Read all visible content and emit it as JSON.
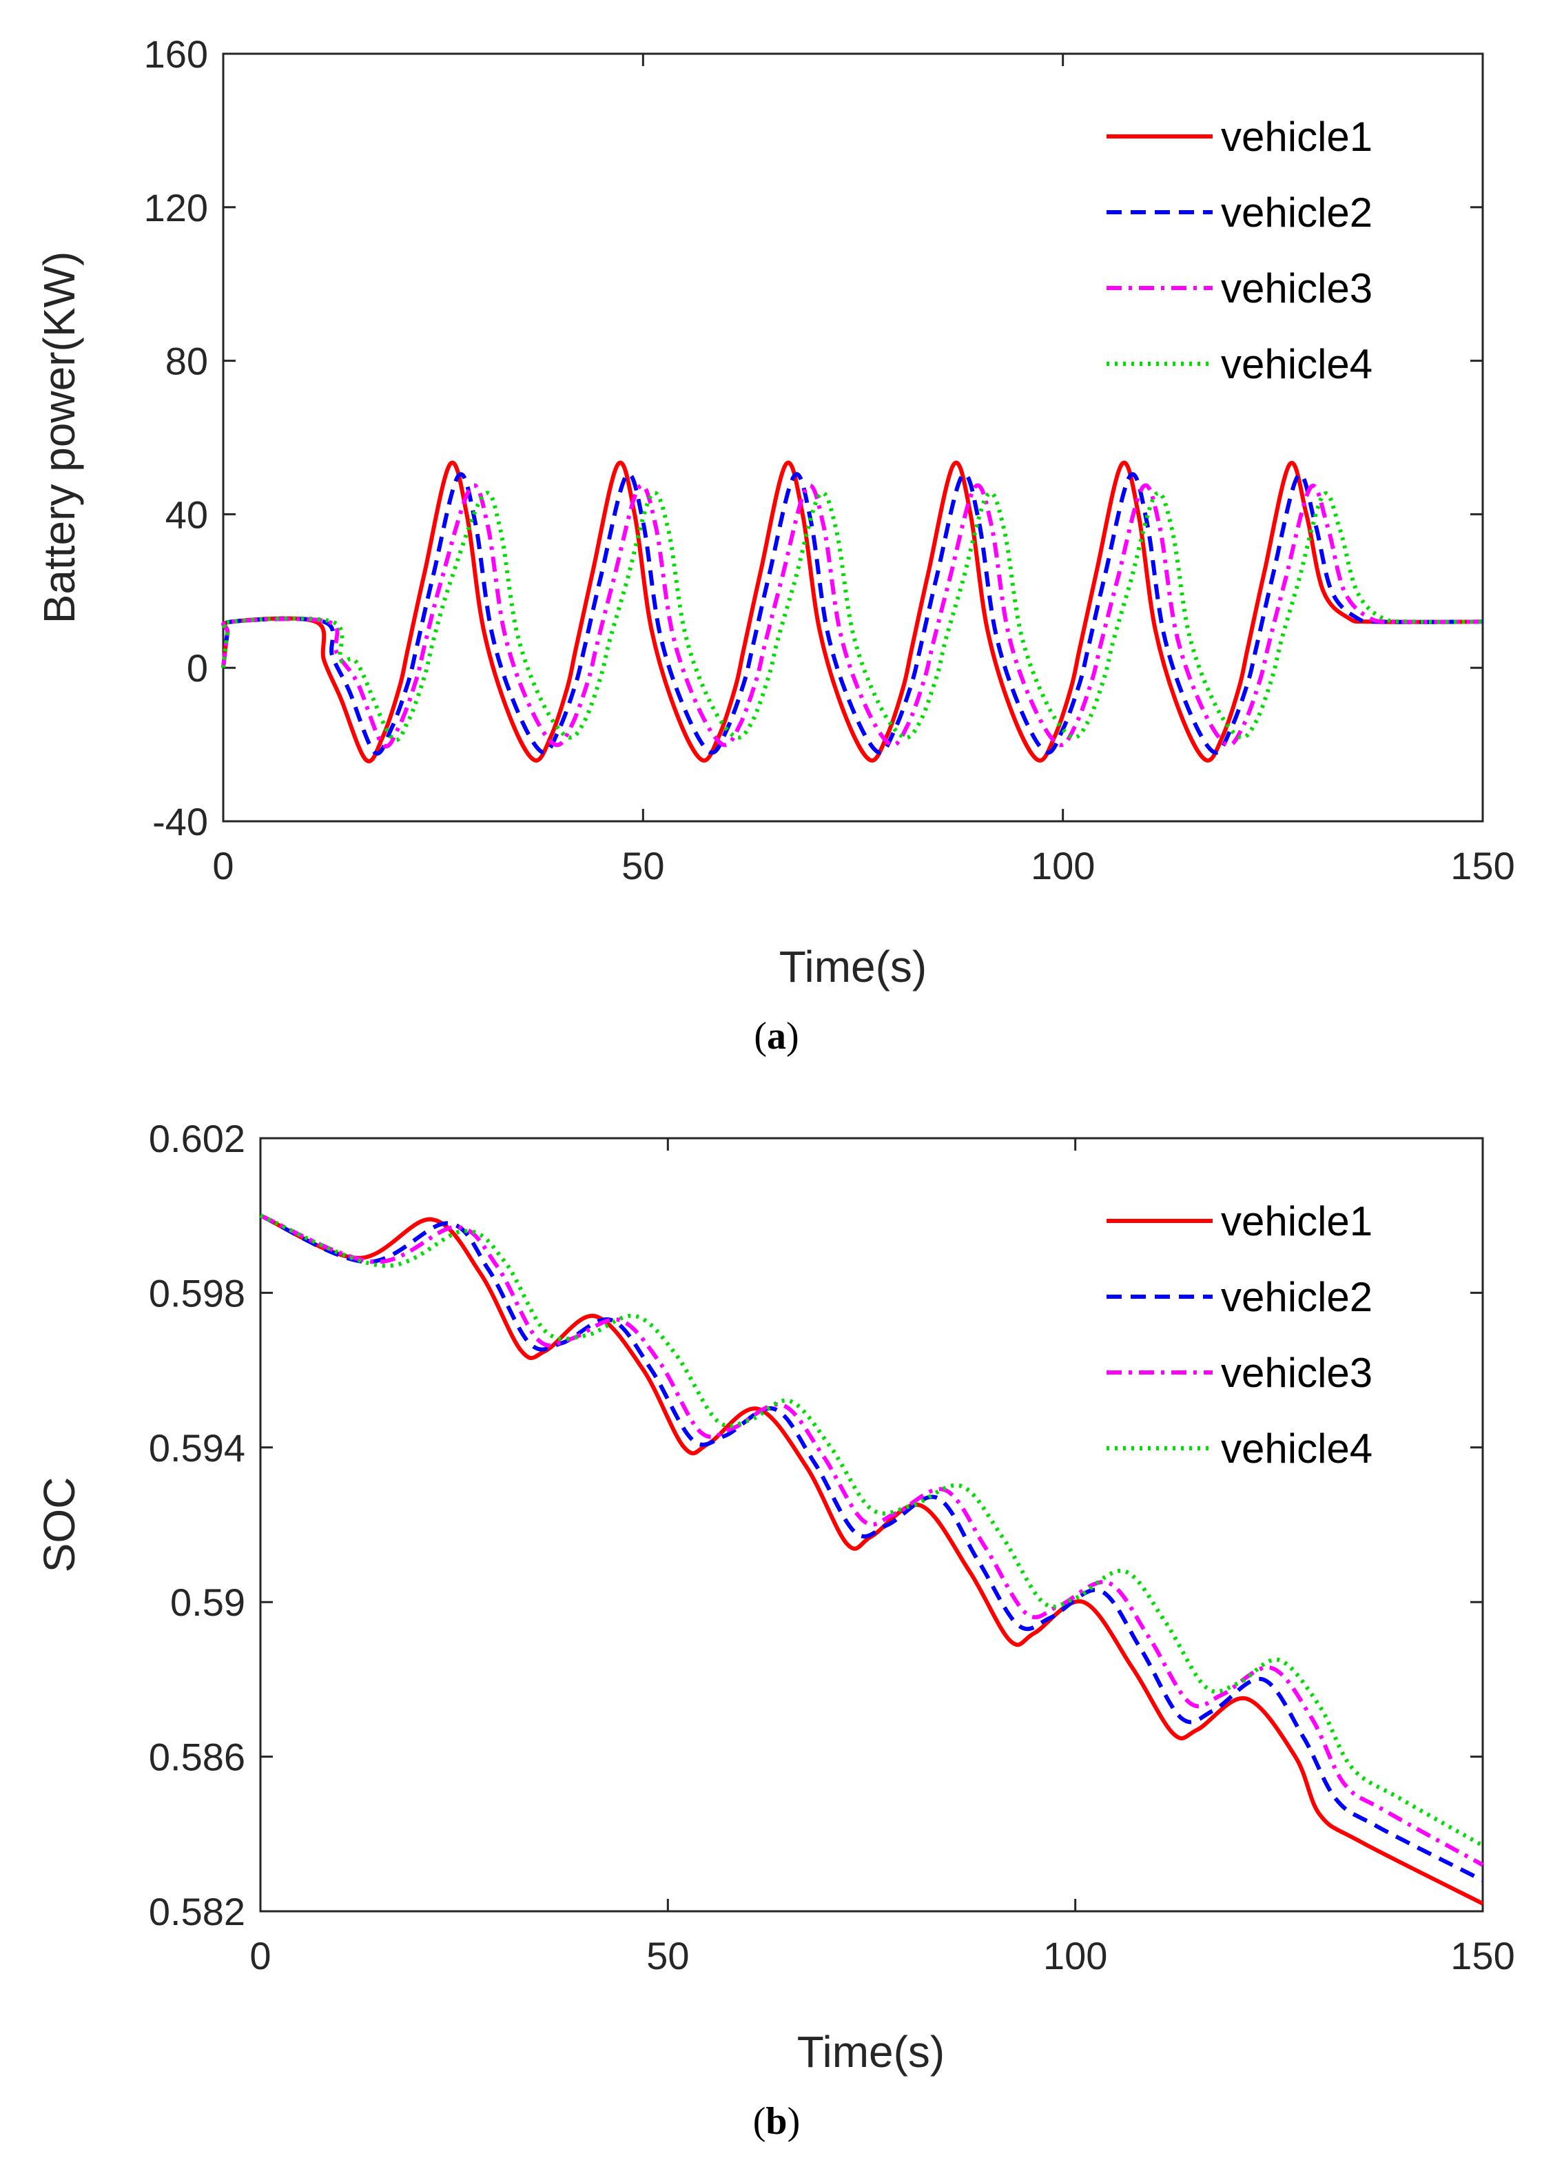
{
  "chart_data": [
    {
      "type": "line",
      "panel": "a",
      "caption": {
        "open": "(",
        "letter": "a",
        "close": ")"
      },
      "title": "",
      "xlabel": "Time(s)",
      "ylabel": "Battery power(KW)",
      "xlim": [
        0,
        150
      ],
      "ylim": [
        -40,
        160
      ],
      "xticks": [
        0,
        50,
        100,
        150
      ],
      "yticks": [
        -40,
        0,
        40,
        80,
        120,
        160
      ],
      "xtick_labels": [
        "0",
        "50",
        "100",
        "150"
      ],
      "ytick_labels": [
        "-40",
        "0",
        "40",
        "80",
        "120",
        "160"
      ],
      "grid": false,
      "legend": "top-right",
      "series": [
        {
          "name": "vehicle1",
          "color": "#ff0000",
          "dash": "solid",
          "x": [
            0,
            0.5,
            1,
            11,
            12,
            14,
            17,
            19,
            21,
            22,
            24,
            27,
            29,
            31,
            34,
            37,
            39,
            41,
            42,
            44,
            47,
            49,
            51,
            54,
            57,
            59,
            61,
            62,
            64,
            67,
            69,
            71,
            74,
            77,
            79,
            81,
            82,
            84,
            87,
            89,
            91,
            94,
            97,
            99,
            101,
            102,
            104,
            107,
            109,
            111,
            114,
            117,
            119,
            121,
            122,
            124,
            127,
            129,
            131,
            134,
            137,
            150
          ],
          "y": [
            0,
            9,
            12,
            12,
            2,
            -8,
            -24,
            -18,
            -5,
            5,
            25,
            53,
            40,
            10,
            -12,
            -24,
            -18,
            -5,
            5,
            25,
            53,
            40,
            10,
            -12,
            -24,
            -18,
            -5,
            5,
            25,
            53,
            40,
            10,
            -12,
            -24,
            -18,
            -5,
            5,
            25,
            53,
            40,
            10,
            -12,
            -24,
            -18,
            -5,
            5,
            25,
            53,
            40,
            10,
            -12,
            -24,
            -18,
            -5,
            5,
            25,
            53,
            40,
            20,
            13,
            12,
            12
          ]
        },
        {
          "name": "vehicle2",
          "color": "#0000ff",
          "dash": "dashed",
          "x": [
            0,
            0.5,
            1,
            12,
            13,
            15,
            18,
            20,
            22,
            23,
            25,
            28,
            30,
            32,
            35,
            38,
            40,
            42,
            43,
            45,
            48,
            50,
            52,
            55,
            58,
            60,
            62,
            63,
            65,
            68,
            70,
            72,
            75,
            78,
            80,
            82,
            83,
            85,
            88,
            90,
            92,
            95,
            98,
            100,
            102,
            103,
            105,
            108,
            110,
            112,
            115,
            118,
            120,
            122,
            123,
            125,
            128,
            130,
            132,
            135,
            138,
            150
          ],
          "y": [
            0,
            9,
            12,
            12,
            3,
            -6,
            -22,
            -16,
            -4,
            5,
            24,
            50,
            38,
            9,
            -11,
            -22,
            -16,
            -4,
            5,
            24,
            50,
            38,
            9,
            -11,
            -22,
            -16,
            -4,
            5,
            24,
            50,
            38,
            9,
            -11,
            -22,
            -16,
            -4,
            5,
            24,
            50,
            38,
            9,
            -11,
            -22,
            -16,
            -4,
            5,
            24,
            50,
            38,
            9,
            -11,
            -22,
            -16,
            -4,
            5,
            24,
            50,
            38,
            20,
            13,
            12,
            12
          ]
        },
        {
          "name": "vehicle3",
          "color": "#ff00ff",
          "dash": "dashdot",
          "x": [
            0,
            0.5,
            1,
            12.5,
            13.5,
            16,
            19,
            21,
            23,
            24,
            26,
            29.5,
            31.5,
            33.5,
            36.5,
            39.5,
            41.5,
            43.5,
            44.5,
            46.5,
            49.5,
            51.5,
            53.5,
            56.5,
            59.5,
            61.5,
            63.5,
            64.5,
            66.5,
            69.5,
            71.5,
            73.5,
            76.5,
            79.5,
            81.5,
            83.5,
            84.5,
            86.5,
            89.5,
            91.5,
            93.5,
            96.5,
            99.5,
            101.5,
            103.5,
            104.5,
            106.5,
            109.5,
            111.5,
            113.5,
            116.5,
            119.5,
            121.5,
            123.5,
            124.5,
            126.5,
            129.5,
            131.5,
            133.5,
            136.5,
            140,
            150
          ],
          "y": [
            0,
            9,
            12,
            12,
            4,
            -4,
            -20,
            -15,
            -3,
            6,
            23,
            47,
            37,
            9,
            -10,
            -20,
            -15,
            -3,
            6,
            23,
            47,
            37,
            9,
            -10,
            -20,
            -15,
            -3,
            6,
            23,
            47,
            37,
            9,
            -10,
            -20,
            -15,
            -3,
            6,
            23,
            47,
            37,
            9,
            -10,
            -20,
            -15,
            -3,
            6,
            23,
            47,
            37,
            9,
            -10,
            -20,
            -15,
            -3,
            6,
            23,
            47,
            37,
            20,
            13,
            12,
            12
          ]
        },
        {
          "name": "vehicle4",
          "color": "#00dd00",
          "dash": "dotted",
          "x": [
            0,
            0.5,
            1,
            13,
            14,
            16,
            20,
            22,
            24,
            25,
            27,
            31,
            33,
            35,
            38,
            41,
            43,
            45,
            46,
            48,
            51,
            53,
            55,
            58,
            61,
            63,
            65,
            66,
            68,
            71,
            73,
            75,
            78,
            81,
            83,
            85,
            86,
            88,
            91,
            93,
            95,
            98,
            101,
            103,
            105,
            106,
            108,
            111,
            113,
            115,
            118,
            121,
            123,
            125,
            126,
            128,
            131,
            133,
            135,
            138,
            142,
            150
          ],
          "y": [
            0,
            9,
            12,
            12,
            2,
            1,
            -18,
            -14,
            -2,
            7,
            22,
            45,
            36,
            9,
            -9,
            -18,
            -14,
            -2,
            7,
            22,
            45,
            36,
            9,
            -9,
            -18,
            -14,
            -2,
            7,
            22,
            45,
            36,
            9,
            -9,
            -18,
            -14,
            -2,
            7,
            22,
            45,
            36,
            9,
            -9,
            -18,
            -14,
            -2,
            7,
            22,
            45,
            36,
            9,
            -9,
            -18,
            -14,
            -2,
            7,
            22,
            45,
            36,
            20,
            13,
            12,
            12
          ]
        }
      ]
    },
    {
      "type": "line",
      "panel": "b",
      "caption": {
        "open": "(",
        "letter": "b",
        "close": ")"
      },
      "title": "",
      "xlabel": "Time(s)",
      "ylabel": "SOC",
      "xlim": [
        0,
        150
      ],
      "ylim": [
        0.582,
        0.602
      ],
      "xticks": [
        0,
        50,
        100,
        150
      ],
      "yticks": [
        0.582,
        0.586,
        0.59,
        0.594,
        0.598,
        0.602
      ],
      "xtick_labels": [
        "0",
        "50",
        "100",
        "150"
      ],
      "ytick_labels": [
        "0.582",
        "0.586",
        "0.59",
        "0.594",
        "0.598",
        "0.602"
      ],
      "grid": false,
      "legend": "top-right",
      "series": [
        {
          "name": "vehicle1",
          "color": "#ff0000",
          "dash": "solid",
          "x": [
            0,
            12,
            21,
            27,
            32,
            35,
            41,
            47,
            52,
            55,
            61,
            67,
            72,
            75,
            81,
            87,
            92,
            95,
            101,
            107,
            112,
            115,
            121,
            127,
            130,
            135,
            150
          ],
          "y": [
            0.6,
            0.5989,
            0.5999,
            0.5985,
            0.5965,
            0.5965,
            0.5974,
            0.596,
            0.594,
            0.5941,
            0.595,
            0.5935,
            0.5915,
            0.5917,
            0.5925,
            0.5908,
            0.589,
            0.5892,
            0.59,
            0.5883,
            0.5866,
            0.5867,
            0.5875,
            0.586,
            0.5845,
            0.5838,
            0.5822
          ]
        },
        {
          "name": "vehicle2",
          "color": "#0000ff",
          "dash": "dashed",
          "x": [
            0,
            13,
            23,
            28,
            33,
            37,
            43,
            48,
            53,
            57,
            63,
            68,
            73,
            77,
            83,
            88,
            93,
            97,
            103,
            108,
            113,
            117,
            123,
            128,
            132,
            137,
            150
          ],
          "y": [
            0.6,
            0.5988,
            0.5998,
            0.5986,
            0.5967,
            0.5967,
            0.5973,
            0.596,
            0.5942,
            0.5943,
            0.595,
            0.5936,
            0.5918,
            0.592,
            0.5927,
            0.5911,
            0.5894,
            0.5896,
            0.5903,
            0.5888,
            0.587,
            0.5872,
            0.588,
            0.5865,
            0.5849,
            0.5842,
            0.5828
          ]
        },
        {
          "name": "vehicle3",
          "color": "#ff00ff",
          "dash": "dashdot",
          "x": [
            0,
            14,
            24,
            29,
            34,
            38,
            44,
            49,
            54,
            58,
            64,
            69,
            74,
            78,
            84,
            89,
            94,
            98,
            104,
            109,
            114,
            118,
            124,
            129,
            133,
            138,
            150
          ],
          "y": [
            0.6,
            0.5988,
            0.5997,
            0.5987,
            0.5968,
            0.5968,
            0.5973,
            0.5962,
            0.5944,
            0.5945,
            0.5951,
            0.5938,
            0.5921,
            0.5923,
            0.5929,
            0.5914,
            0.5897,
            0.5899,
            0.5905,
            0.5891,
            0.5874,
            0.5876,
            0.5883,
            0.587,
            0.5853,
            0.5846,
            0.5832
          ]
        },
        {
          "name": "vehicle4",
          "color": "#00dd00",
          "dash": "dotted",
          "x": [
            0,
            15,
            25,
            30,
            35,
            40,
            46,
            51,
            56,
            60,
            65,
            70,
            75,
            80,
            86,
            91,
            96,
            100,
            106,
            111,
            116,
            120,
            125,
            130,
            134,
            140,
            150
          ],
          "y": [
            0.6,
            0.5987,
            0.5996,
            0.5988,
            0.597,
            0.5969,
            0.5974,
            0.5964,
            0.5947,
            0.5947,
            0.5952,
            0.594,
            0.5924,
            0.5925,
            0.593,
            0.5917,
            0.59,
            0.5901,
            0.5908,
            0.5895,
            0.5878,
            0.5879,
            0.5885,
            0.5873,
            0.5857,
            0.5849,
            0.5837
          ]
        }
      ]
    }
  ]
}
